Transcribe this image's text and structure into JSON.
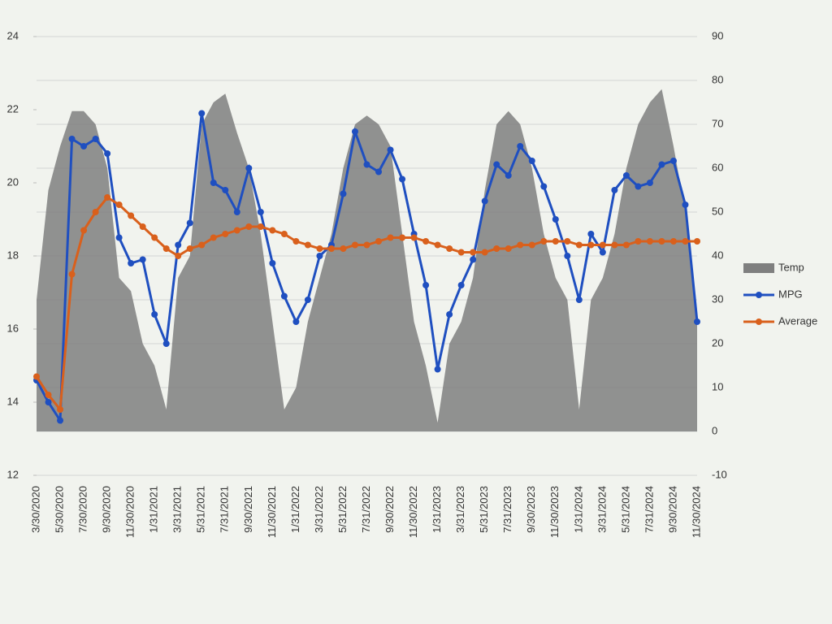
{
  "chart_data": {
    "type": "combo",
    "categories": [
      "3/30/2020",
      null,
      "5/30/2020",
      null,
      "7/30/2020",
      null,
      "9/30/2020",
      null,
      "11/30/2020",
      null,
      "1/31/2021",
      null,
      "3/31/2021",
      null,
      "5/31/2021",
      null,
      "7/31/2021",
      null,
      "9/30/2021",
      null,
      "11/30/2021",
      null,
      "1/31/2022",
      null,
      "3/31/2022",
      null,
      "5/31/2022",
      null,
      "7/31/2022",
      null,
      "9/30/2022",
      null,
      "11/30/2022",
      null,
      "1/31/2023",
      null,
      "3/31/2023",
      null,
      "5/31/2023",
      null,
      "7/31/2023",
      null,
      "9/30/2023",
      null,
      "11/30/2023",
      null,
      "1/31/2024",
      null,
      "3/31/2024",
      null,
      "5/31/2024",
      null,
      "7/31/2024",
      null,
      "9/30/2024",
      null,
      "11/30/2024"
    ],
    "series": [
      {
        "name": "Temp",
        "kind": "area",
        "axis": "y2",
        "color": "#7f7f7f",
        "values": [
          30,
          55,
          65,
          73,
          73,
          70,
          60,
          35,
          32,
          20,
          15,
          5,
          35,
          40,
          70,
          75,
          77,
          68,
          60,
          45,
          25,
          5,
          10,
          25,
          35,
          45,
          60,
          70,
          72,
          70,
          65,
          45,
          25,
          15,
          2,
          20,
          25,
          35,
          55,
          70,
          73,
          70,
          60,
          45,
          35,
          30,
          5,
          30,
          35,
          45,
          60,
          70,
          75,
          78,
          65,
          50,
          25
        ]
      },
      {
        "name": "MPG",
        "kind": "line",
        "color": "#1f4fc0",
        "values": [
          14.6,
          14.0,
          13.5,
          21.2,
          21.0,
          21.2,
          20.8,
          18.5,
          17.8,
          17.9,
          16.4,
          15.6,
          18.3,
          18.9,
          21.9,
          20.0,
          19.8,
          19.2,
          20.4,
          19.2,
          17.8,
          16.9,
          16.2,
          16.8,
          18.0,
          18.3,
          19.7,
          21.4,
          20.5,
          20.3,
          20.9,
          20.1,
          18.6,
          17.2,
          14.9,
          16.4,
          17.2,
          17.9,
          19.5,
          20.5,
          20.2,
          21.0,
          20.6,
          19.9,
          19.0,
          18.0,
          16.8,
          18.6,
          18.1,
          19.8,
          20.2,
          19.9,
          20.0,
          20.5,
          20.6,
          19.4,
          16.2
        ]
      },
      {
        "name": "Average",
        "kind": "line",
        "color": "#d9601c",
        "values": [
          14.7,
          14.2,
          13.8,
          17.5,
          18.7,
          19.2,
          19.6,
          19.4,
          19.1,
          18.8,
          18.5,
          18.2,
          18.0,
          18.2,
          18.3,
          18.5,
          18.6,
          18.7,
          18.8,
          18.8,
          18.7,
          18.6,
          18.4,
          18.3,
          18.2,
          18.2,
          18.2,
          18.3,
          18.3,
          18.4,
          18.5,
          18.5,
          18.5,
          18.4,
          18.3,
          18.2,
          18.1,
          18.1,
          18.1,
          18.2,
          18.2,
          18.3,
          18.3,
          18.4,
          18.4,
          18.4,
          18.3,
          18.3,
          18.3,
          18.3,
          18.3,
          18.4,
          18.4,
          18.4,
          18.4,
          18.4,
          18.4
        ]
      }
    ],
    "ylim": [
      12,
      24
    ],
    "yticks": [
      12,
      14,
      16,
      18,
      20,
      22,
      24
    ],
    "y2lim": [
      -10,
      90
    ],
    "y2ticks": [
      -10,
      0,
      10,
      20,
      30,
      40,
      50,
      60,
      70,
      80,
      90
    ],
    "grid": true,
    "legend": "right"
  }
}
